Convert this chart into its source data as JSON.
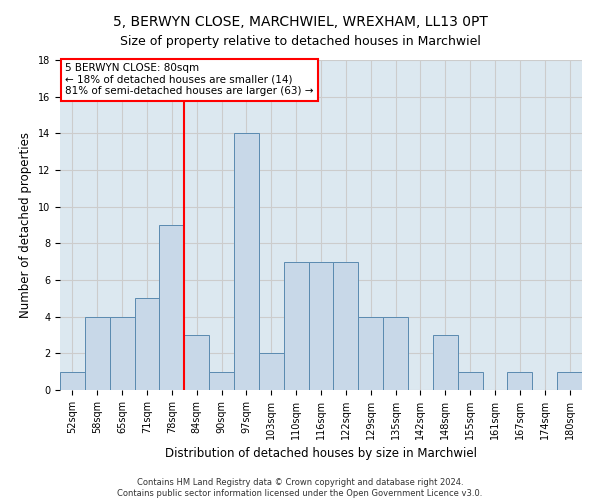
{
  "title": "5, BERWYN CLOSE, MARCHWIEL, WREXHAM, LL13 0PT",
  "subtitle": "Size of property relative to detached houses in Marchwiel",
  "xlabel": "Distribution of detached houses by size in Marchwiel",
  "ylabel": "Number of detached properties",
  "bin_labels": [
    "52sqm",
    "58sqm",
    "65sqm",
    "71sqm",
    "78sqm",
    "84sqm",
    "90sqm",
    "97sqm",
    "103sqm",
    "110sqm",
    "116sqm",
    "122sqm",
    "129sqm",
    "135sqm",
    "142sqm",
    "148sqm",
    "155sqm",
    "161sqm",
    "167sqm",
    "174sqm",
    "180sqm"
  ],
  "bar_values": [
    1,
    4,
    4,
    5,
    9,
    3,
    1,
    14,
    2,
    7,
    7,
    7,
    4,
    4,
    0,
    3,
    1,
    0,
    1,
    0,
    1
  ],
  "bar_color": "#c8d8e8",
  "bar_edge_color": "#5a8ab0",
  "property_line_x": 4.5,
  "annotation_text": "5 BERWYN CLOSE: 80sqm\n← 18% of detached houses are smaller (14)\n81% of semi-detached houses are larger (63) →",
  "annotation_box_color": "white",
  "annotation_box_edge_color": "red",
  "vline_color": "red",
  "ylim": [
    0,
    18
  ],
  "yticks": [
    0,
    2,
    4,
    6,
    8,
    10,
    12,
    14,
    16,
    18
  ],
  "grid_color": "#cccccc",
  "background_color": "#dce8f0",
  "footer_text": "Contains HM Land Registry data © Crown copyright and database right 2024.\nContains public sector information licensed under the Open Government Licence v3.0.",
  "title_fontsize": 10,
  "xlabel_fontsize": 8.5,
  "ylabel_fontsize": 8.5,
  "annotation_fontsize": 7.5,
  "tick_fontsize": 7
}
